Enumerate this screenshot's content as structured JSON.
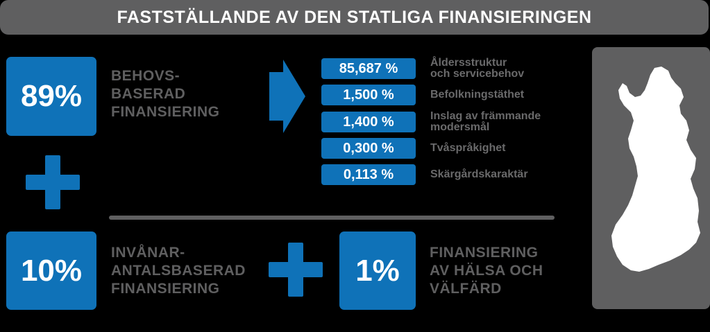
{
  "title": "FASTSTÄLLANDE AV DEN STATLIGA FINANSIERINGEN",
  "needs_based": {
    "percent": "89%",
    "label_lines": [
      "BEHOVS-",
      "BASERAD",
      "FINANSIERING"
    ]
  },
  "factors": [
    {
      "percent": "85,687 %",
      "label_lines": [
        "Åldersstruktur",
        "och servicebehov"
      ]
    },
    {
      "percent": "1,500 %",
      "label_lines": [
        "Befolkningstäthet"
      ]
    },
    {
      "percent": "1,400 %",
      "label_lines": [
        "Inslag av främmande",
        "modersmål"
      ]
    },
    {
      "percent": "0,300 %",
      "label_lines": [
        "Tvåspråkighet"
      ]
    },
    {
      "percent": "0,113 %",
      "label_lines": [
        "Skärgårdskaraktär"
      ]
    }
  ],
  "population_based": {
    "percent": "10%",
    "label_lines": [
      "INVÅNAR-",
      "ANTALSBASERAD",
      "FINANSIERING"
    ]
  },
  "health_welfare": {
    "percent": "1%",
    "label_lines": [
      "FINANSIERING",
      "AV HÄLSA OCH",
      "VÄLFÄRD"
    ]
  },
  "icons": {
    "plus": "plus-icon",
    "arrow": "arrow-right-icon",
    "map": "finland-map-icon"
  },
  "colors": {
    "accent_blue": "#0f72b8",
    "gray": "#5f5f60",
    "background": "#000000",
    "text_white": "#ffffff"
  }
}
